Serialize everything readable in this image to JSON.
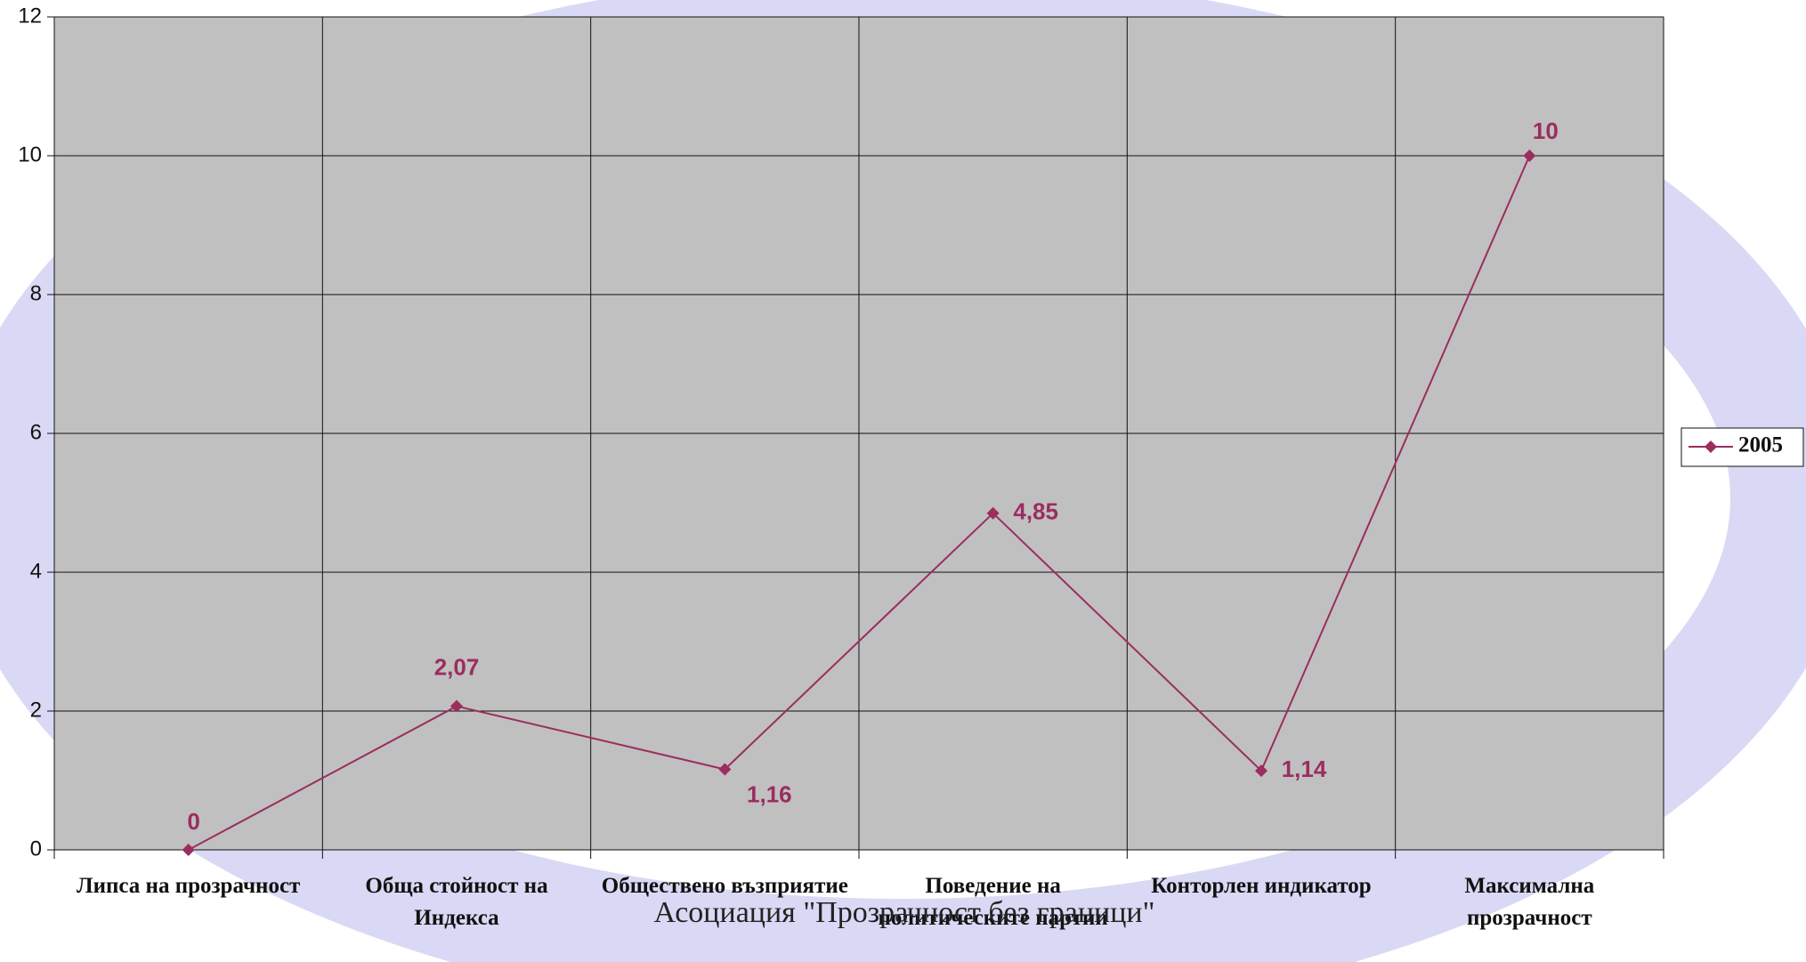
{
  "chart_data": {
    "type": "line",
    "categories": [
      "Липса на прозрачност",
      "Обща стойност на Индекса",
      "Обществено възприятие",
      "Поведение на политическите партии",
      "Конторлен индикатор",
      "Максимална прозрачност"
    ],
    "series": [
      {
        "name": "2005",
        "color": "#9b2d5f",
        "values": [
          0,
          2.07,
          1.16,
          4.85,
          1.14,
          10
        ],
        "value_labels": [
          "0",
          "2,07",
          "1,16",
          "4,85",
          "1,14",
          "10"
        ]
      }
    ],
    "ylim": [
      0,
      12
    ],
    "yticks": [
      0,
      2,
      4,
      6,
      8,
      10,
      12
    ],
    "grid": true,
    "legend": "right"
  },
  "watermark": "Асоциация \"Прозрачност без граници\""
}
